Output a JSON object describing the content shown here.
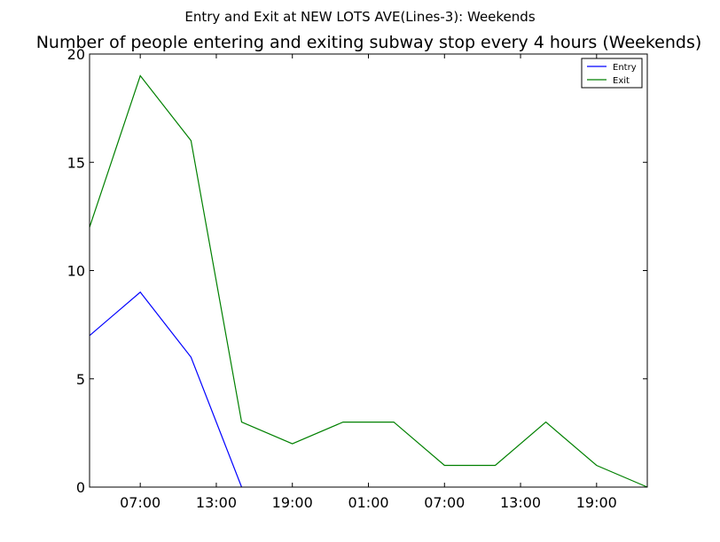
{
  "figure": {
    "suptitle": "Entry and Exit at NEW LOTS AVE(Lines-3): Weekends"
  },
  "chart_data": {
    "type": "line",
    "title": "Number of people entering and exiting subway stop every 4 hours (Weekends)",
    "xlabel": "",
    "ylabel": "",
    "x": [
      "03:00",
      "07:00",
      "11:00",
      "15:00",
      "19:00",
      "23:00",
      "03:00",
      "07:00",
      "11:00",
      "15:00",
      "19:00",
      "23:00"
    ],
    "x_ticks": [
      "07:00",
      "13:00",
      "19:00",
      "01:00",
      "07:00",
      "13:00",
      "19:00"
    ],
    "x_tick_hours": [
      4,
      10,
      16,
      22,
      28,
      34,
      40
    ],
    "x_hours": [
      0,
      4,
      8,
      12,
      16,
      20,
      24,
      28,
      32,
      36,
      40,
      44
    ],
    "xlim_hours": [
      0,
      44
    ],
    "ylim": [
      0,
      20
    ],
    "y_ticks": [
      0,
      5,
      10,
      15,
      20
    ],
    "grid": false,
    "legend_position": "top-right",
    "series": [
      {
        "name": "Entry",
        "color": "#0000ff",
        "values": [
          7,
          9,
          6,
          0,
          null,
          null,
          null,
          null,
          null,
          null,
          null,
          null
        ]
      },
      {
        "name": "Exit",
        "color": "#008000",
        "values": [
          12,
          19,
          16,
          3,
          2,
          3,
          3,
          1,
          1,
          3,
          1,
          0
        ]
      }
    ]
  }
}
